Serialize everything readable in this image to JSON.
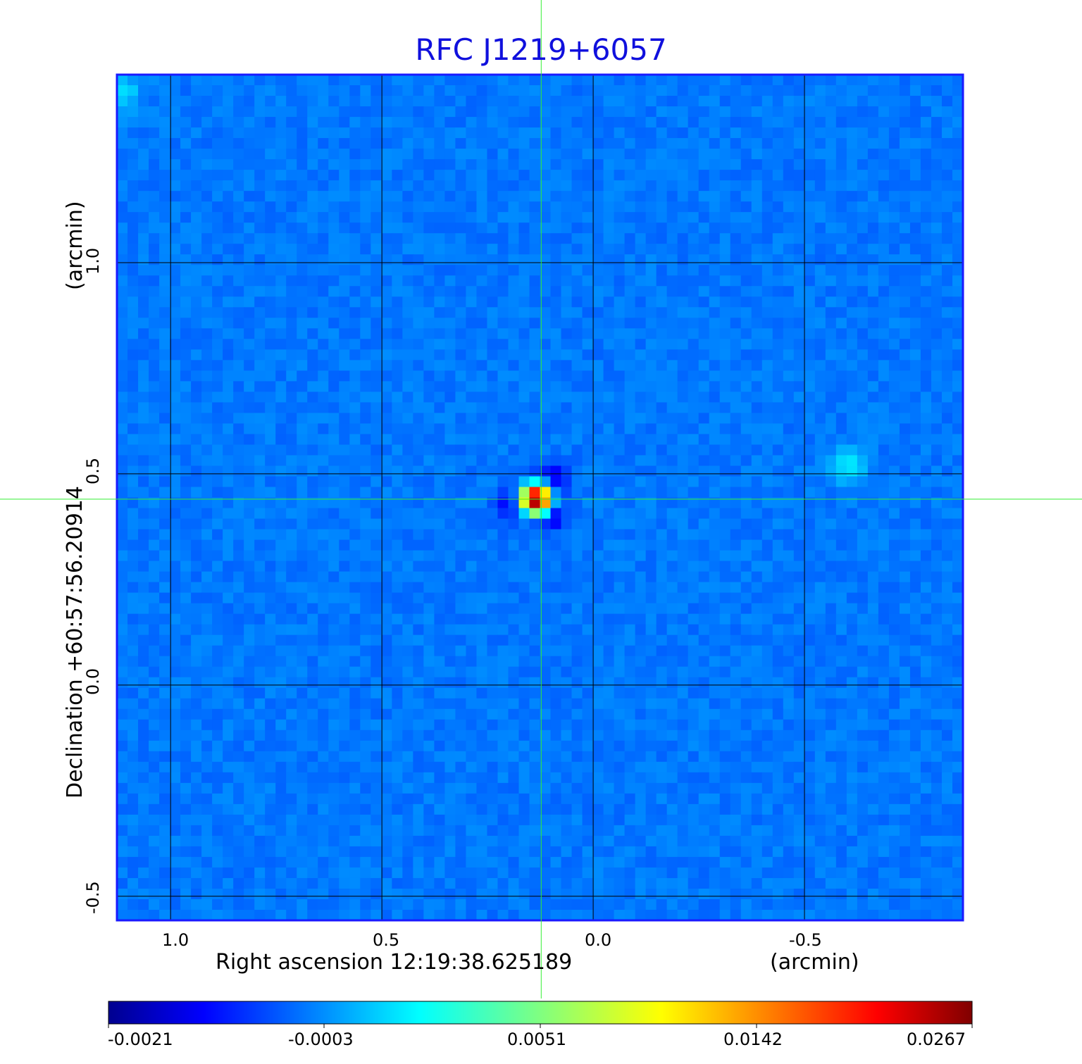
{
  "chart_data": {
    "type": "heatmap",
    "title": "RFC J1219+6057",
    "xlabel": "Right ascension  12:19:38.625189",
    "xunit": "(arcmin)",
    "ylabel": "Declination  +60:57:56.20914",
    "yunit": "(arcmin)",
    "x_ticks": [
      "1.0",
      "0.5",
      "0.0",
      "-0.5"
    ],
    "y_ticks": [
      "1.0",
      "0.5",
      "0.0",
      "-0.5"
    ],
    "xlim": [
      1.127,
      -0.875
    ],
    "ylim": [
      -0.557,
      1.445
    ],
    "grid": true,
    "crosshair": {
      "x": 0.123,
      "y": 0.44
    },
    "colormap": "jet",
    "colorbar_ticks": [
      "-0.0021",
      "-0.0003",
      "0.0051",
      "0.0142",
      "0.0267"
    ],
    "colorbar_range": [
      -0.0021,
      0.0267
    ],
    "peak": {
      "x": 0.135,
      "y": 0.44,
      "value": 0.0267
    },
    "features": [
      {
        "x": 0.135,
        "y": 0.44,
        "value": 0.0267,
        "type": "peak"
      },
      {
        "x": 0.1,
        "y": 0.49,
        "value": -0.0021,
        "type": "negative"
      },
      {
        "x": 0.1,
        "y": 0.4,
        "value": -0.0021,
        "type": "negative"
      },
      {
        "x": 0.2,
        "y": 0.42,
        "value": -0.0018,
        "type": "negative"
      },
      {
        "x": -0.6,
        "y": 0.52,
        "value": 0.002,
        "type": "positive"
      },
      {
        "x": 1.12,
        "y": 1.4,
        "value": 0.0018,
        "type": "positive"
      }
    ]
  },
  "colors": {
    "title": "#1010dd",
    "frame": "#1a1aff",
    "grid": "#000000",
    "crosshair": "#33ee33"
  }
}
